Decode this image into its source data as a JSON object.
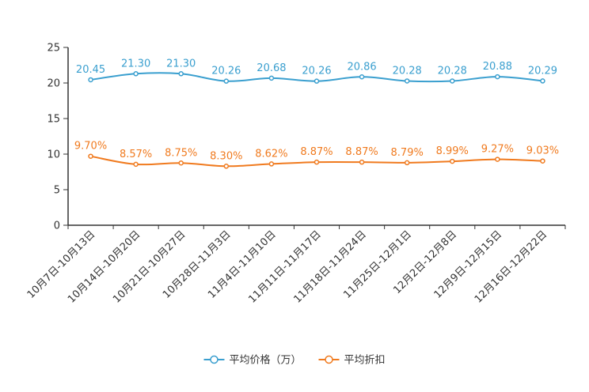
{
  "chart_data": {
    "type": "line",
    "title": "",
    "xlabel": "",
    "ylabel": "",
    "ylim": [
      0,
      25
    ],
    "yticks": [
      "0",
      "5",
      "10",
      "15",
      "20",
      "25"
    ],
    "categories": [
      "10月7日-10月13日",
      "10月14日-10月20日",
      "10月21日-10月27日",
      "10月28日-11月3日",
      "11月4日-11月10日",
      "11月11日-11月17日",
      "11月18日-11月24日",
      "11月25日-12月1日",
      "12月2日-12月8日",
      "12月9日-12月15日",
      "12月16日-12月22日"
    ],
    "series": [
      {
        "name": "平均价格（万）",
        "color": "#3a9fcf",
        "values": [
          20.45,
          21.3,
          21.3,
          20.26,
          20.68,
          20.26,
          20.86,
          20.28,
          20.28,
          20.88,
          20.29
        ],
        "labels": [
          "20.45",
          "21.30",
          "21.30",
          "20.26",
          "20.68",
          "20.26",
          "20.86",
          "20.28",
          "20.28",
          "20.88",
          "20.29"
        ]
      },
      {
        "name": "平均折扣",
        "color": "#f07a1e",
        "values": [
          9.7,
          8.57,
          8.75,
          8.3,
          8.62,
          8.87,
          8.87,
          8.79,
          8.99,
          9.27,
          9.03
        ],
        "labels": [
          "9.70%",
          "8.57%",
          "8.75%",
          "8.30%",
          "8.62%",
          "8.87%",
          "8.87%",
          "8.79%",
          "8.99%",
          "9.27%",
          "9.03%"
        ]
      }
    ],
    "legend_position": "bottom"
  }
}
